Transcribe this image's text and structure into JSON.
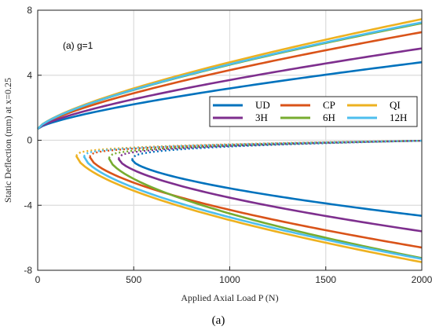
{
  "chart_data": {
    "type": "line",
    "xlabel": "Applied Axial Load P (N)",
    "ylabel": "Static Deflection (mm) at x=0.25",
    "xlim": [
      0,
      2000
    ],
    "ylim": [
      -8,
      8
    ],
    "xticks": [
      "0",
      "500",
      "1000",
      "1500",
      "2000"
    ],
    "yticks": [
      "8",
      "4",
      "0",
      "-4",
      "-8"
    ],
    "grid": true,
    "annotation": "(a) g=1",
    "caption": "(a)",
    "legend_position": "center-right",
    "series": [
      {
        "name": "UD",
        "color": "#0072BD",
        "upper_end": 4.8,
        "lower_end": -4.65,
        "bifurcation_load": 490
      },
      {
        "name": "CP",
        "color": "#D95319",
        "upper_end": 6.65,
        "lower_end": -6.6,
        "bifurcation_load": 270
      },
      {
        "name": "QI",
        "color": "#EDB120",
        "upper_end": 7.45,
        "lower_end": -7.5,
        "bifurcation_load": 200
      },
      {
        "name": "3H",
        "color": "#7E2F8E",
        "upper_end": 5.65,
        "lower_end": -5.6,
        "bifurcation_load": 420
      },
      {
        "name": "6H",
        "color": "#77AC30",
        "upper_end": 7.2,
        "lower_end": -7.25,
        "bifurcation_load": 370
      },
      {
        "name": "12H",
        "color": "#4DBEEE",
        "upper_end": 7.25,
        "lower_end": -7.3,
        "bifurcation_load": 240
      }
    ],
    "initial_deflection": 0.7
  }
}
